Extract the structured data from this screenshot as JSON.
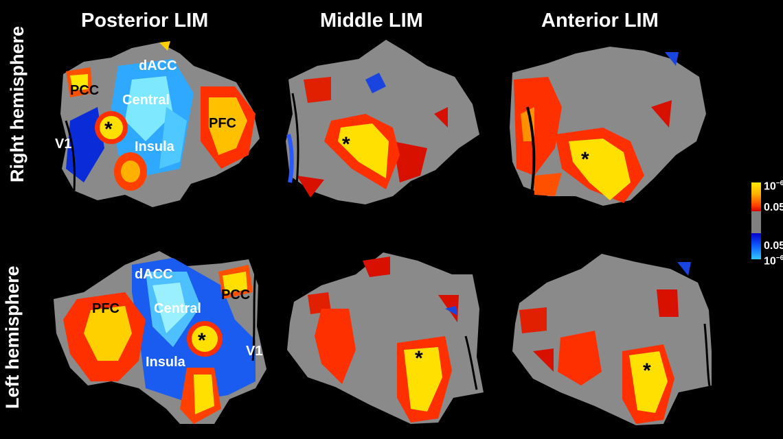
{
  "columns": {
    "posterior": "Posterior LIM",
    "middle": "Middle LIM",
    "anterior": "Anterior LIM"
  },
  "rows": {
    "right": "Right hemisphere",
    "left": "Left hemisphere"
  },
  "region_labels": {
    "pcc": "PCC",
    "dacc": "dACC",
    "central": "Central",
    "pfc": "PFC",
    "v1": "V1",
    "insula": "Insula",
    "seed": "*"
  },
  "colorbar": {
    "pos_max": "10",
    "pos_max_exp": "−6",
    "pos_min": "0.05",
    "neg_min": "0.05",
    "neg_max": "10",
    "neg_max_exp": "−6",
    "colors": {
      "positive": [
        "#ffe800",
        "#ffb000",
        "#ff4000",
        "#d80000"
      ],
      "neutral": "#808080",
      "negative": [
        "#0000d0",
        "#1060ff",
        "#30c8ff"
      ]
    }
  }
}
